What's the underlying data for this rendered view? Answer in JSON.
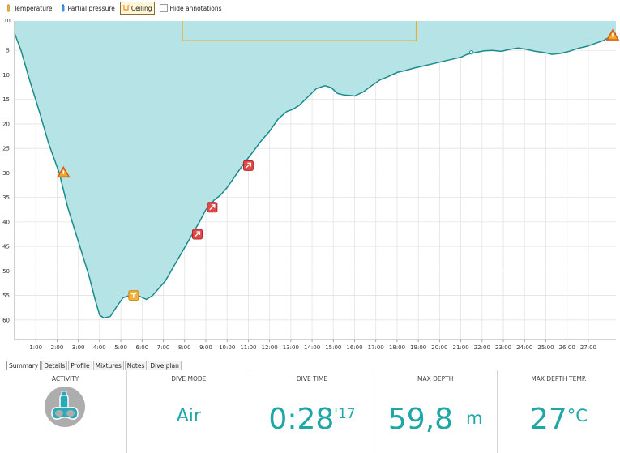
{
  "toolbar": {
    "items": [
      {
        "label": "Temperature",
        "icon": "thermometer-icon",
        "active": false
      },
      {
        "label": "Partial pressure",
        "icon": "gas-bottle-icon",
        "active": false
      },
      {
        "label": "Ceiling",
        "icon": "ceiling-icon",
        "active": true
      },
      {
        "label": "Hide annotations",
        "icon": "checkbox",
        "active": false
      }
    ]
  },
  "chart_data": {
    "type": "area",
    "ylabel": "m",
    "y_ticks": [
      5,
      10,
      15,
      20,
      25,
      30,
      35,
      40,
      45,
      50,
      55,
      60
    ],
    "x_ticks": [
      "1:00",
      "2:00",
      "3:00",
      "4:00",
      "5:00",
      "6:00",
      "7:00",
      "8:00",
      "9:00",
      "10:00",
      "11:00",
      "12:00",
      "13:00",
      "14:00",
      "15:00",
      "16:00",
      "17:00",
      "18:00",
      "19:00",
      "20:00",
      "21:00",
      "22:00",
      "23:00",
      "24:00",
      "25:00",
      "26:00",
      "27:00"
    ],
    "xlim_min": [
      0,
      28.3
    ],
    "ylim_m": [
      0,
      64
    ],
    "grid": true,
    "colors": {
      "area": "#b6e4e6",
      "line": "#1a8a8a",
      "ceiling": "#f0a830"
    },
    "depth_profile": {
      "t_min": [
        0,
        0.3,
        0.7,
        1.2,
        1.6,
        2.1,
        2.5,
        3.0,
        3.5,
        3.8,
        4.0,
        4.2,
        4.5,
        4.8,
        5.1,
        5.4,
        5.6,
        5.9,
        6.2,
        6.5,
        6.8,
        7.1,
        7.5,
        7.9,
        8.3,
        8.7,
        9.0,
        9.4,
        9.7,
        10.0,
        10.4,
        10.8,
        11.2,
        11.6,
        12.0,
        12.4,
        12.8,
        13.1,
        13.4,
        13.8,
        14.2,
        14.6,
        14.9,
        15.2,
        15.5,
        15.8,
        16.0,
        16.4,
        16.8,
        17.2,
        17.6,
        18.0,
        18.4,
        18.8,
        19.2,
        19.6,
        20.0,
        20.5,
        21.0,
        21.3,
        21.7,
        22.1,
        22.5,
        22.9,
        23.3,
        23.7,
        24.1,
        24.5,
        24.9,
        25.3,
        25.7,
        26.1,
        26.5,
        26.9,
        27.3,
        27.7,
        28.0,
        28.3
      ],
      "depth_m": [
        1.5,
        5,
        11,
        18,
        24,
        30,
        37,
        44,
        51,
        56,
        59,
        59.6,
        59.3,
        57.3,
        55.5,
        55,
        54.8,
        55.2,
        55.8,
        55,
        53.5,
        52,
        49,
        46,
        43,
        40,
        37.5,
        35.5,
        34.5,
        33,
        30.5,
        28,
        25.8,
        23.5,
        21.5,
        19,
        17.5,
        17,
        16.2,
        14.5,
        12.8,
        12.2,
        12.6,
        13.8,
        14.1,
        14.2,
        14.3,
        13.5,
        12.2,
        11,
        10.3,
        9.5,
        9.1,
        8.6,
        8.2,
        7.8,
        7.4,
        6.9,
        6.4,
        5.8,
        5.4,
        5.1,
        5.0,
        5.2,
        4.8,
        4.5,
        4.8,
        5.2,
        5.4,
        5.8,
        5.6,
        5.2,
        4.6,
        4.2,
        3.6,
        3.0,
        2.3,
        1.5
      ]
    },
    "ceiling": {
      "t_min": [
        7.9,
        7.9,
        18.9,
        18.9
      ],
      "depth_m": [
        0,
        3,
        3,
        0
      ]
    },
    "annotations": [
      {
        "type": "warning",
        "t_min": 2.3,
        "depth_m": 30
      },
      {
        "type": "marker",
        "t_min": 5.6,
        "depth_m": 55
      },
      {
        "type": "event",
        "t_min": 8.6,
        "depth_m": 42.5
      },
      {
        "type": "event",
        "t_min": 9.3,
        "depth_m": 37
      },
      {
        "type": "event",
        "t_min": 11.0,
        "depth_m": 28.5
      },
      {
        "type": "point",
        "t_min": 21.5,
        "depth_m": 5.4
      },
      {
        "type": "warning",
        "t_min": 28.3,
        "depth_m": 2
      }
    ]
  },
  "tabs": [
    {
      "label": "Summary",
      "active": true
    },
    {
      "label": "Details",
      "active": false
    },
    {
      "label": "Profile",
      "active": false
    },
    {
      "label": "Mixtures",
      "active": false
    },
    {
      "label": "Notes",
      "active": false
    },
    {
      "label": "Dive plan",
      "active": false
    }
  ],
  "summary": {
    "activity": {
      "title": "ACTIVITY",
      "icon": "diver-tank-mask-icon"
    },
    "dive_mode": {
      "title": "DIVE MODE",
      "value": "Air"
    },
    "dive_time": {
      "title": "DIVE TIME",
      "main": "0:28",
      "sup": "'17"
    },
    "max_depth": {
      "title": "MAX DEPTH",
      "value": "59,8",
      "unit": "m"
    },
    "max_depth_temp": {
      "title": "MAX DEPTH TEMP.",
      "value": "27",
      "unit": "°C"
    }
  }
}
